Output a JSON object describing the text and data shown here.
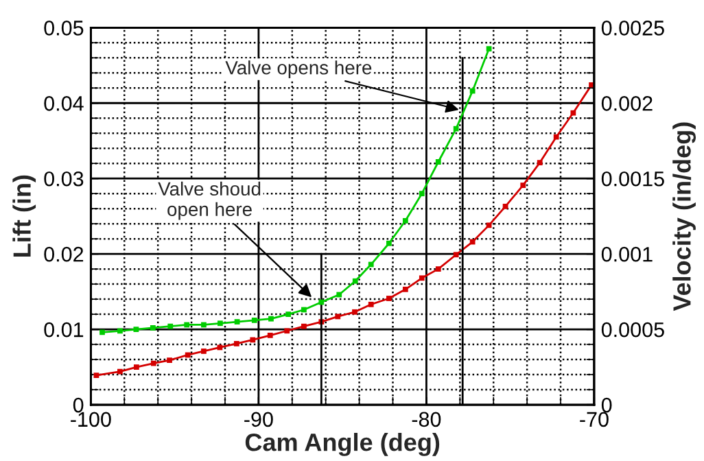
{
  "chart_data": {
    "type": "line",
    "xlabel": "Cam Angle (deg)",
    "ylabel": "Lift (in)",
    "y2label": "Velocity (in/deg)",
    "xlim": [
      -100,
      -70
    ],
    "xticks": [
      -100,
      -90,
      -80,
      -70
    ],
    "ylim": [
      0,
      0.05
    ],
    "yticks": [
      0,
      0.01,
      0.02,
      0.03,
      0.04,
      0.05
    ],
    "y2lim": [
      0,
      0.0025
    ],
    "y2ticks": [
      0,
      0.0005,
      0.001,
      0.0015,
      0.002,
      0.0025
    ],
    "grid": true,
    "marker": "square",
    "line_style": "solid",
    "series": [
      {
        "color": "#d40000",
        "x": [
          -99.67,
          -98.26,
          -97.28,
          -96.26,
          -95.31,
          -94.22,
          -93.27,
          -92.31,
          -91.31,
          -90.35,
          -89.31,
          -88.31,
          -87.3,
          -86.26,
          -85.28,
          -84.27,
          -83.3,
          -82.23,
          -81.25,
          -80.27,
          -79.29,
          -78.23,
          -77.25,
          -76.27,
          -75.29,
          -74.24,
          -73.24,
          -72.26,
          -71.25,
          -70.16
        ],
        "values": [
          0.0039,
          0.0044,
          0.005,
          0.0055,
          0.0059,
          0.0066,
          0.0071,
          0.0076,
          0.0081,
          0.0086,
          0.0092,
          0.0098,
          0.0104,
          0.011,
          0.0117,
          0.0123,
          0.0133,
          0.0141,
          0.0153,
          0.0168,
          0.018,
          0.0199,
          0.0216,
          0.0238,
          0.0263,
          0.0291,
          0.0321,
          0.0355,
          0.0387,
          0.0424
        ]
      },
      {
        "color": "#00cc00",
        "axis": "y2",
        "x": [
          -99.32,
          -98.26,
          -97.3,
          -96.3,
          -95.26,
          -94.28,
          -93.27,
          -92.29,
          -91.28,
          -90.25,
          -89.26,
          -88.23,
          -87.3,
          -86.26,
          -85.2,
          -84.24,
          -83.3,
          -82.23,
          -81.25,
          -80.27,
          -79.29,
          -78.23,
          -77.25,
          -76.27
        ],
        "values": [
          0.00048,
          0.00049,
          0.0005,
          0.00051,
          0.00052,
          0.00053,
          0.00053,
          0.00054,
          0.00055,
          0.00056,
          0.00057,
          0.0006,
          0.00063,
          0.00068,
          0.00073,
          0.00082,
          0.00093,
          0.00107,
          0.00122,
          0.0014,
          0.00161,
          0.00183,
          0.00208,
          0.00236
        ]
      },
      {
        "type": "line",
        "color": "#000000",
        "marker": "none",
        "x": [
          -86.26,
          -86.26
        ],
        "values": [
          0,
          0.02
        ]
      },
      {
        "type": "line",
        "color": "#000000",
        "marker": "none",
        "x": [
          -77.84,
          -77.84
        ],
        "values": [
          0,
          0.046
        ]
      }
    ],
    "annotations": [
      {
        "text": "Valve opens here",
        "x": -77.84,
        "y": 0.039
      },
      {
        "text": "Valve shoud\nopen here",
        "x": -86.67,
        "y": 0.0139
      }
    ]
  }
}
